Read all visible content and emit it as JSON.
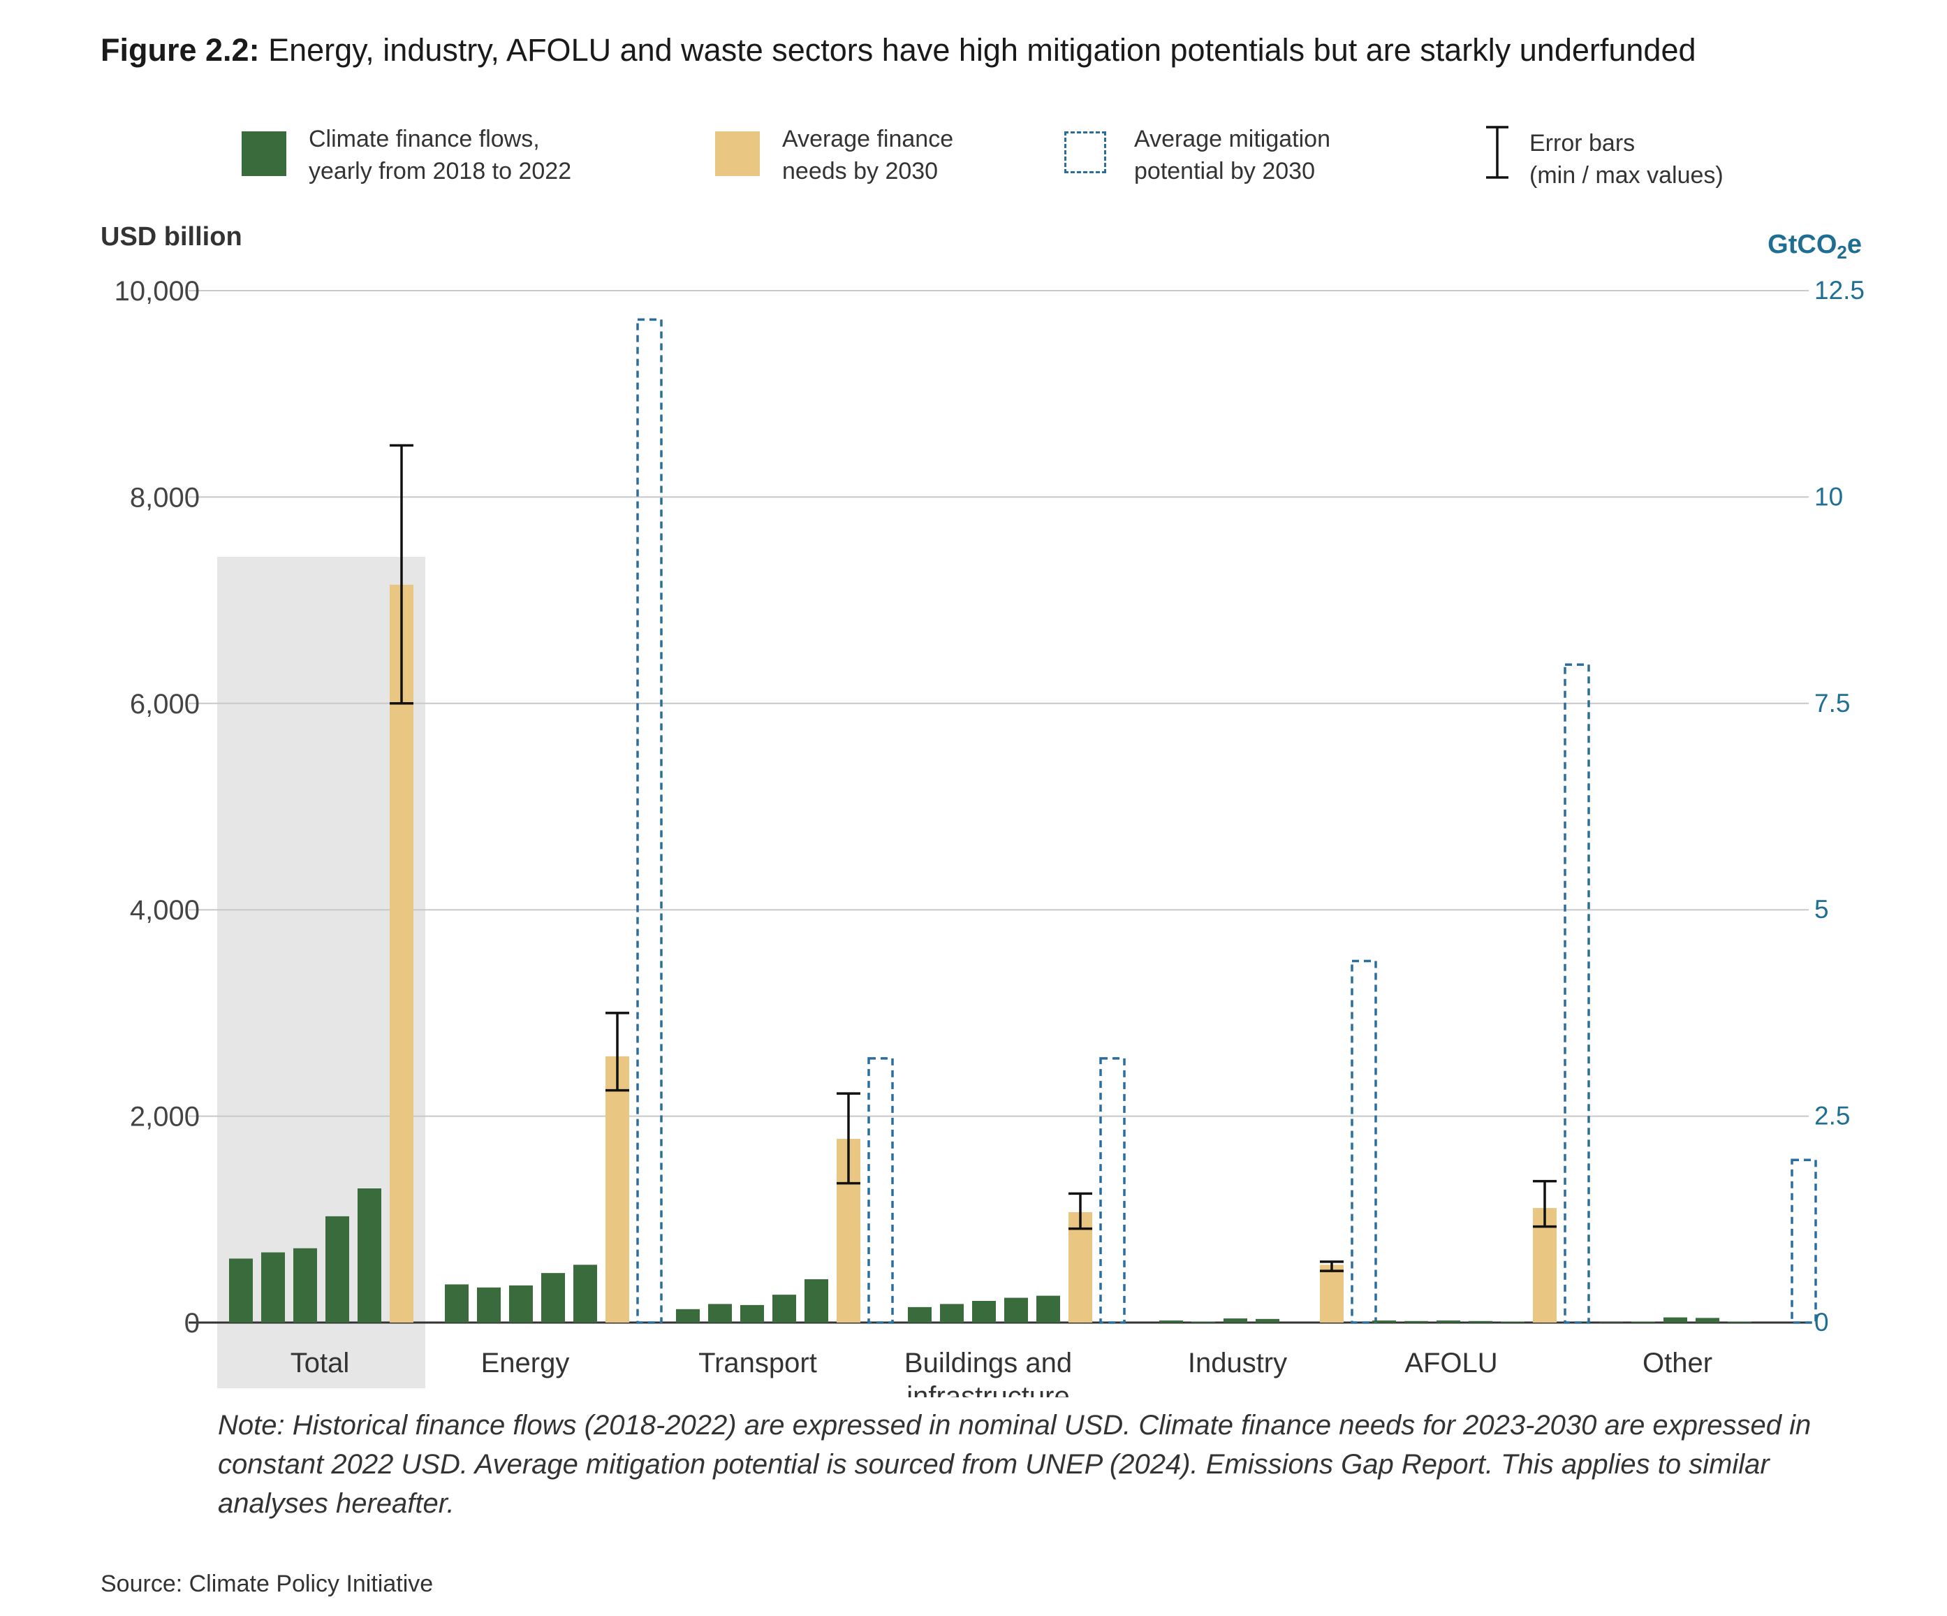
{
  "title_prefix": "Figure 2.2:",
  "title_text": " Energy, industry, AFOLU and waste sectors have high mitigation potentials but are starkly underfunded",
  "legend": {
    "flows": [
      "Climate finance flows,",
      "yearly from 2018 to 2022"
    ],
    "needs": [
      "Average finance",
      "needs by 2030"
    ],
    "potential": [
      "Average mitigation",
      "potential by 2030"
    ],
    "errors": [
      "Error bars",
      "(min / max values)"
    ]
  },
  "note_label": "Note",
  "note_text": ": Historical finance flows (2018-2022) are expressed in nominal USD. Climate finance needs for 2023-2030 are expressed in constant 2022 USD. Average mitigation potential is sourced from UNEP (2024). Emissions Gap Report. This applies to similar analyses hereafter.",
  "source": "Source: Climate Policy Initiative",
  "chart_data": {
    "type": "bar",
    "ylabel_left": "USD billion",
    "ylabel_right": "GtCO₂e",
    "ylim_left": [
      0,
      10000
    ],
    "ylim_right": [
      0,
      12.5
    ],
    "yticks_left": [
      "0",
      "2,000",
      "4,000",
      "6,000",
      "8,000",
      "10,000"
    ],
    "yticks_right": [
      "0",
      "2.5",
      "5",
      "7.5",
      "10",
      "12.5"
    ],
    "grid": true,
    "colors": {
      "flows": "#3a6b3c",
      "needs": "#e9c681",
      "potential": "#2a6e9e",
      "total_band": "#e6e6e6",
      "error": "#111111",
      "right_axis": "#1f6e93"
    },
    "categories": [
      "Total",
      "Energy",
      "Transport",
      "Buildings and infrastructure",
      "Industry",
      "AFOLU",
      "Other"
    ],
    "category_labels": [
      [
        "Total"
      ],
      [
        "Energy"
      ],
      [
        "Transport"
      ],
      [
        "Buildings and",
        "infrastructure"
      ],
      [
        "Industry"
      ],
      [
        "AFOLU"
      ],
      [
        "Other"
      ]
    ],
    "series": [
      {
        "name": "Climate finance flows, yearly from 2018 to 2022",
        "values": [
          [
            620,
            680,
            720,
            1030,
            1300
          ],
          [
            370,
            340,
            360,
            480,
            560
          ],
          [
            130,
            180,
            170,
            270,
            420
          ],
          [
            150,
            180,
            210,
            240,
            260
          ],
          [
            20,
            10,
            40,
            35,
            0
          ],
          [
            20,
            15,
            20,
            15,
            10
          ],
          [
            5,
            10,
            50,
            45,
            10
          ]
        ]
      },
      {
        "name": "Average finance needs by 2030",
        "values": [
          7150,
          2580,
          1780,
          1070,
          560,
          1110,
          null
        ],
        "error_min": [
          6000,
          2250,
          1350,
          910,
          500,
          930,
          null
        ],
        "error_max": [
          8500,
          3000,
          2220,
          1250,
          590,
          1370,
          null
        ]
      },
      {
        "name": "Average mitigation potential by 2030",
        "axis": "right",
        "values": [
          null,
          12.15,
          3.2,
          3.2,
          4.38,
          7.97,
          1.97
        ]
      }
    ]
  }
}
